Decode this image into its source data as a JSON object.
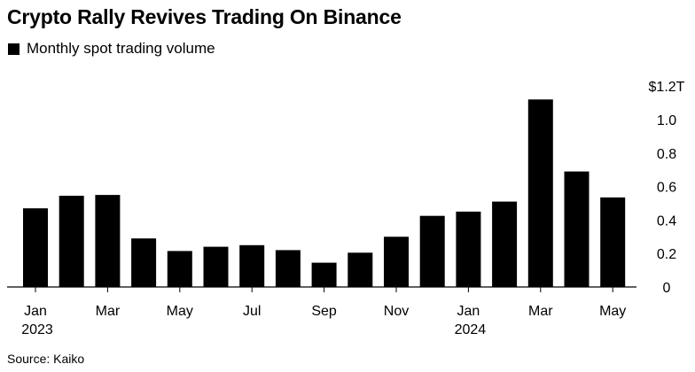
{
  "title": "Crypto Rally Revives Trading On Binance",
  "source": "Source: Kaiko",
  "chart_data": {
    "type": "bar",
    "legend": "Monthly spot trading volume",
    "legend_position": "top-left",
    "categories": [
      "Jan 2023",
      "Feb 2023",
      "Mar 2023",
      "Apr 2023",
      "May 2023",
      "Jun 2023",
      "Jul 2023",
      "Aug 2023",
      "Sep 2023",
      "Oct 2023",
      "Nov 2023",
      "Dec 2023",
      "Jan 2024",
      "Feb 2024",
      "Mar 2024",
      "Apr 2024",
      "May 2024"
    ],
    "series": [
      {
        "name": "Monthly spot trading volume",
        "values": [
          0.47,
          0.545,
          0.55,
          0.29,
          0.215,
          0.24,
          0.25,
          0.22,
          0.145,
          0.205,
          0.3,
          0.425,
          0.45,
          0.51,
          1.12,
          0.69,
          0.535
        ]
      }
    ],
    "x_ticks": [
      {
        "index": 0,
        "label": "Jan",
        "sublabel": "2023"
      },
      {
        "index": 2,
        "label": "Mar",
        "sublabel": ""
      },
      {
        "index": 4,
        "label": "May",
        "sublabel": ""
      },
      {
        "index": 6,
        "label": "Jul",
        "sublabel": ""
      },
      {
        "index": 8,
        "label": "Sep",
        "sublabel": ""
      },
      {
        "index": 10,
        "label": "Nov",
        "sublabel": ""
      },
      {
        "index": 12,
        "label": "Jan",
        "sublabel": "2024"
      },
      {
        "index": 14,
        "label": "Mar",
        "sublabel": ""
      },
      {
        "index": 16,
        "label": "May",
        "sublabel": ""
      }
    ],
    "y_ticks": [
      {
        "value": 0,
        "label": "0"
      },
      {
        "value": 0.2,
        "label": "0.2"
      },
      {
        "value": 0.4,
        "label": "0.4"
      },
      {
        "value": 0.6,
        "label": "0.6"
      },
      {
        "value": 0.8,
        "label": "0.8"
      },
      {
        "value": 1.0,
        "label": "1.0"
      },
      {
        "value": 1.2,
        "label": "$1.2T"
      }
    ],
    "ylim": [
      0,
      1.2
    ],
    "y_axis_side": "right",
    "grid": false,
    "bar_color": "#000000"
  }
}
